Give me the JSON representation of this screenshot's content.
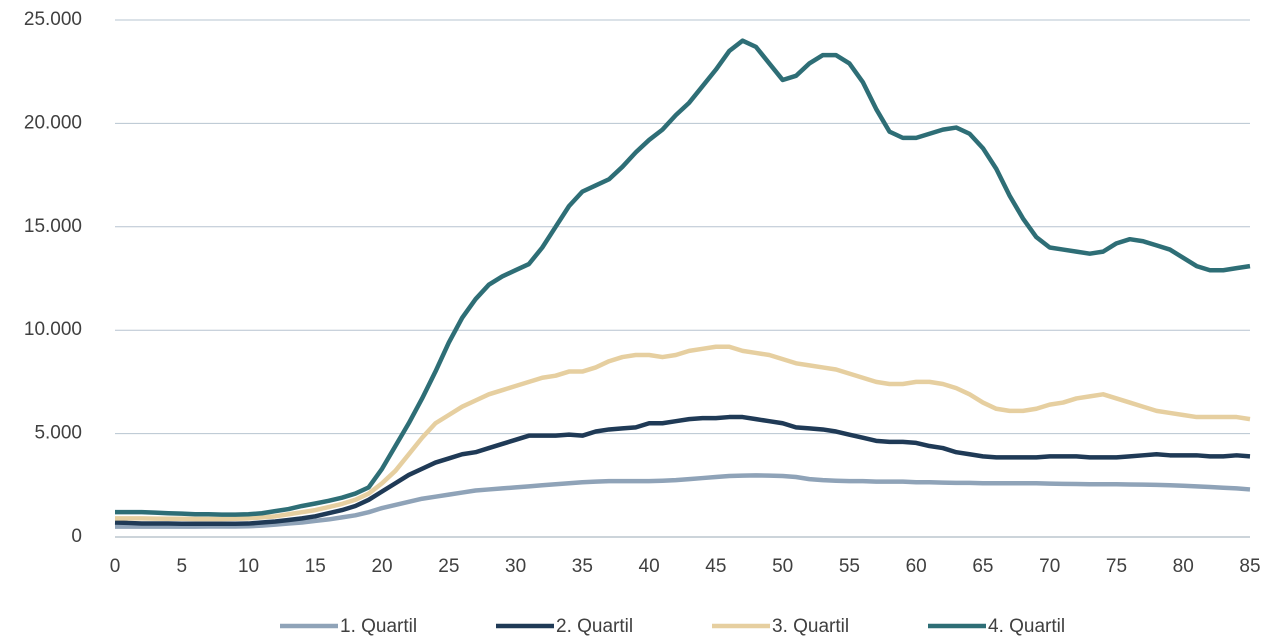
{
  "chart_data": {
    "type": "line",
    "x": [
      0,
      1,
      2,
      3,
      4,
      5,
      6,
      7,
      8,
      9,
      10,
      11,
      12,
      13,
      14,
      15,
      16,
      17,
      18,
      19,
      20,
      21,
      22,
      23,
      24,
      25,
      26,
      27,
      28,
      29,
      30,
      31,
      32,
      33,
      34,
      35,
      36,
      37,
      38,
      39,
      40,
      41,
      42,
      43,
      44,
      45,
      46,
      47,
      48,
      49,
      50,
      51,
      52,
      53,
      54,
      55,
      56,
      57,
      58,
      59,
      60,
      61,
      62,
      63,
      64,
      65,
      66,
      67,
      68,
      69,
      70,
      71,
      72,
      73,
      74,
      75,
      76,
      77,
      78,
      79,
      80,
      81,
      82,
      83,
      84,
      85
    ],
    "series": [
      {
        "name": "1. Quartil",
        "color": "#8fa3b8",
        "values": [
          500,
          500,
          500,
          500,
          500,
          500,
          500,
          510,
          510,
          510,
          520,
          550,
          600,
          650,
          700,
          780,
          850,
          950,
          1050,
          1200,
          1400,
          1550,
          1700,
          1850,
          1950,
          2050,
          2150,
          2250,
          2300,
          2350,
          2400,
          2450,
          2500,
          2550,
          2600,
          2650,
          2680,
          2700,
          2700,
          2700,
          2700,
          2720,
          2750,
          2800,
          2850,
          2900,
          2950,
          2970,
          2980,
          2970,
          2950,
          2900,
          2800,
          2750,
          2720,
          2700,
          2700,
          2680,
          2680,
          2680,
          2650,
          2650,
          2630,
          2620,
          2620,
          2600,
          2600,
          2600,
          2600,
          2600,
          2580,
          2570,
          2560,
          2550,
          2550,
          2550,
          2540,
          2530,
          2520,
          2500,
          2480,
          2450,
          2420,
          2380,
          2350,
          2300
        ]
      },
      {
        "name": "2. Quartil",
        "color": "#1f3a56",
        "values": [
          700,
          680,
          650,
          650,
          650,
          640,
          640,
          640,
          640,
          640,
          650,
          700,
          750,
          820,
          900,
          1000,
          1150,
          1300,
          1500,
          1800,
          2200,
          2600,
          3000,
          3300,
          3600,
          3800,
          4000,
          4100,
          4300,
          4500,
          4700,
          4900,
          4900,
          4900,
          4950,
          4900,
          5100,
          5200,
          5250,
          5300,
          5500,
          5500,
          5600,
          5700,
          5750,
          5750,
          5800,
          5800,
          5700,
          5600,
          5500,
          5300,
          5250,
          5200,
          5100,
          4950,
          4800,
          4650,
          4600,
          4600,
          4550,
          4400,
          4300,
          4100,
          4000,
          3900,
          3850,
          3850,
          3850,
          3850,
          3900,
          3900,
          3900,
          3850,
          3850,
          3850,
          3900,
          3950,
          4000,
          3950,
          3950,
          3950,
          3900,
          3900,
          3950,
          3900
        ]
      },
      {
        "name": "3. Quartil",
        "color": "#e6cfa0",
        "values": [
          900,
          900,
          900,
          890,
          880,
          880,
          870,
          870,
          870,
          880,
          900,
          950,
          1000,
          1100,
          1200,
          1300,
          1450,
          1600,
          1800,
          2100,
          2600,
          3200,
          4000,
          4800,
          5500,
          5900,
          6300,
          6600,
          6900,
          7100,
          7300,
          7500,
          7700,
          7800,
          8000,
          8000,
          8200,
          8500,
          8700,
          8800,
          8800,
          8700,
          8800,
          9000,
          9100,
          9200,
          9200,
          9000,
          8900,
          8800,
          8600,
          8400,
          8300,
          8200,
          8100,
          7900,
          7700,
          7500,
          7400,
          7400,
          7500,
          7500,
          7400,
          7200,
          6900,
          6500,
          6200,
          6100,
          6100,
          6200,
          6400,
          6500,
          6700,
          6800,
          6900,
          6700,
          6500,
          6300,
          6100,
          6000,
          5900,
          5800,
          5800,
          5800,
          5800,
          5700
        ]
      },
      {
        "name": "4. Quartil",
        "color": "#2e6e76",
        "values": [
          1200,
          1200,
          1200,
          1180,
          1150,
          1130,
          1100,
          1100,
          1080,
          1080,
          1100,
          1150,
          1250,
          1350,
          1500,
          1620,
          1750,
          1900,
          2100,
          2400,
          3300,
          4400,
          5500,
          6700,
          8000,
          9400,
          10600,
          11500,
          12200,
          12600,
          12900,
          13200,
          14000,
          15000,
          16000,
          16700,
          17000,
          17300,
          17900,
          18600,
          19200,
          19700,
          20400,
          21000,
          21800,
          22600,
          23500,
          24000,
          23700,
          22900,
          22100,
          22300,
          22900,
          23300,
          23300,
          22900,
          22000,
          20700,
          19600,
          19300,
          19300,
          19500,
          19700,
          19800,
          19500,
          18800,
          17800,
          16500,
          15400,
          14500,
          14000,
          13900,
          13800,
          13700,
          13800,
          14200,
          14400,
          14300,
          14100,
          13900,
          13500,
          13100,
          12900,
          12900,
          13000,
          13100
        ]
      }
    ],
    "xlim": [
      0,
      85
    ],
    "xticks": [
      0,
      5,
      10,
      15,
      20,
      25,
      30,
      35,
      40,
      45,
      50,
      55,
      60,
      65,
      70,
      75,
      80,
      85
    ],
    "ylim": [
      0,
      25000
    ],
    "yticks": [
      0,
      {
        "value": 5000,
        "label": "5.000"
      },
      {
        "value": 10000,
        "label": "10.000"
      },
      {
        "value": 15000,
        "label": "15.000"
      },
      {
        "value": 20000,
        "label": "20.000"
      },
      {
        "value": 25000,
        "label": "25.000"
      }
    ],
    "grid": true,
    "legend": "bottom"
  }
}
